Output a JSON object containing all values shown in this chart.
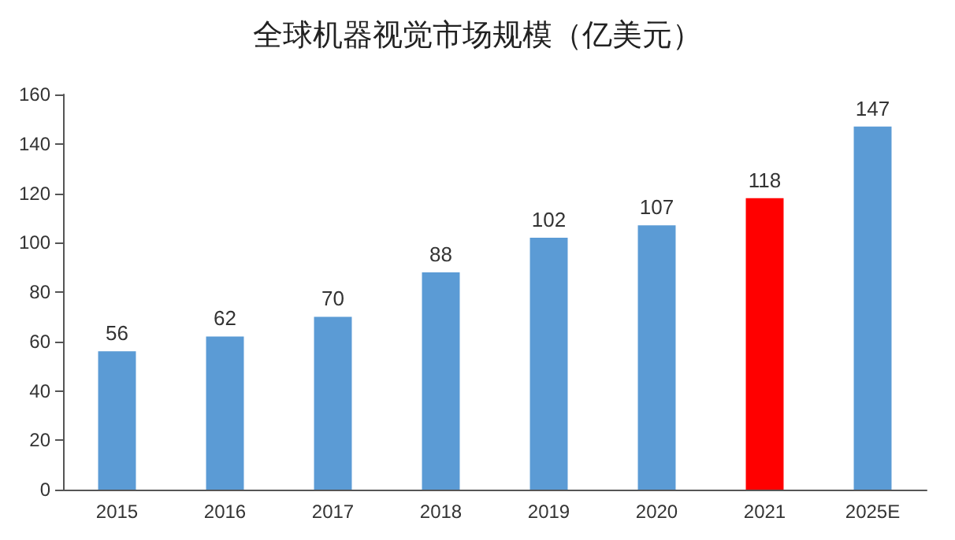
{
  "chart_data": {
    "type": "bar",
    "title": "全球机器视觉市场规模（亿美元）",
    "categories": [
      "2015",
      "2016",
      "2017",
      "2018",
      "2019",
      "2020",
      "2021",
      "2025E"
    ],
    "values": [
      56,
      62,
      70,
      88,
      102,
      107,
      118,
      147
    ],
    "colors": [
      "#5b9bd5",
      "#5b9bd5",
      "#5b9bd5",
      "#5b9bd5",
      "#5b9bd5",
      "#5b9bd5",
      "#ff0000",
      "#5b9bd5"
    ],
    "ylim": [
      0,
      160
    ],
    "yticks": [
      0,
      20,
      40,
      60,
      80,
      100,
      120,
      140,
      160
    ],
    "data_labels": true
  }
}
